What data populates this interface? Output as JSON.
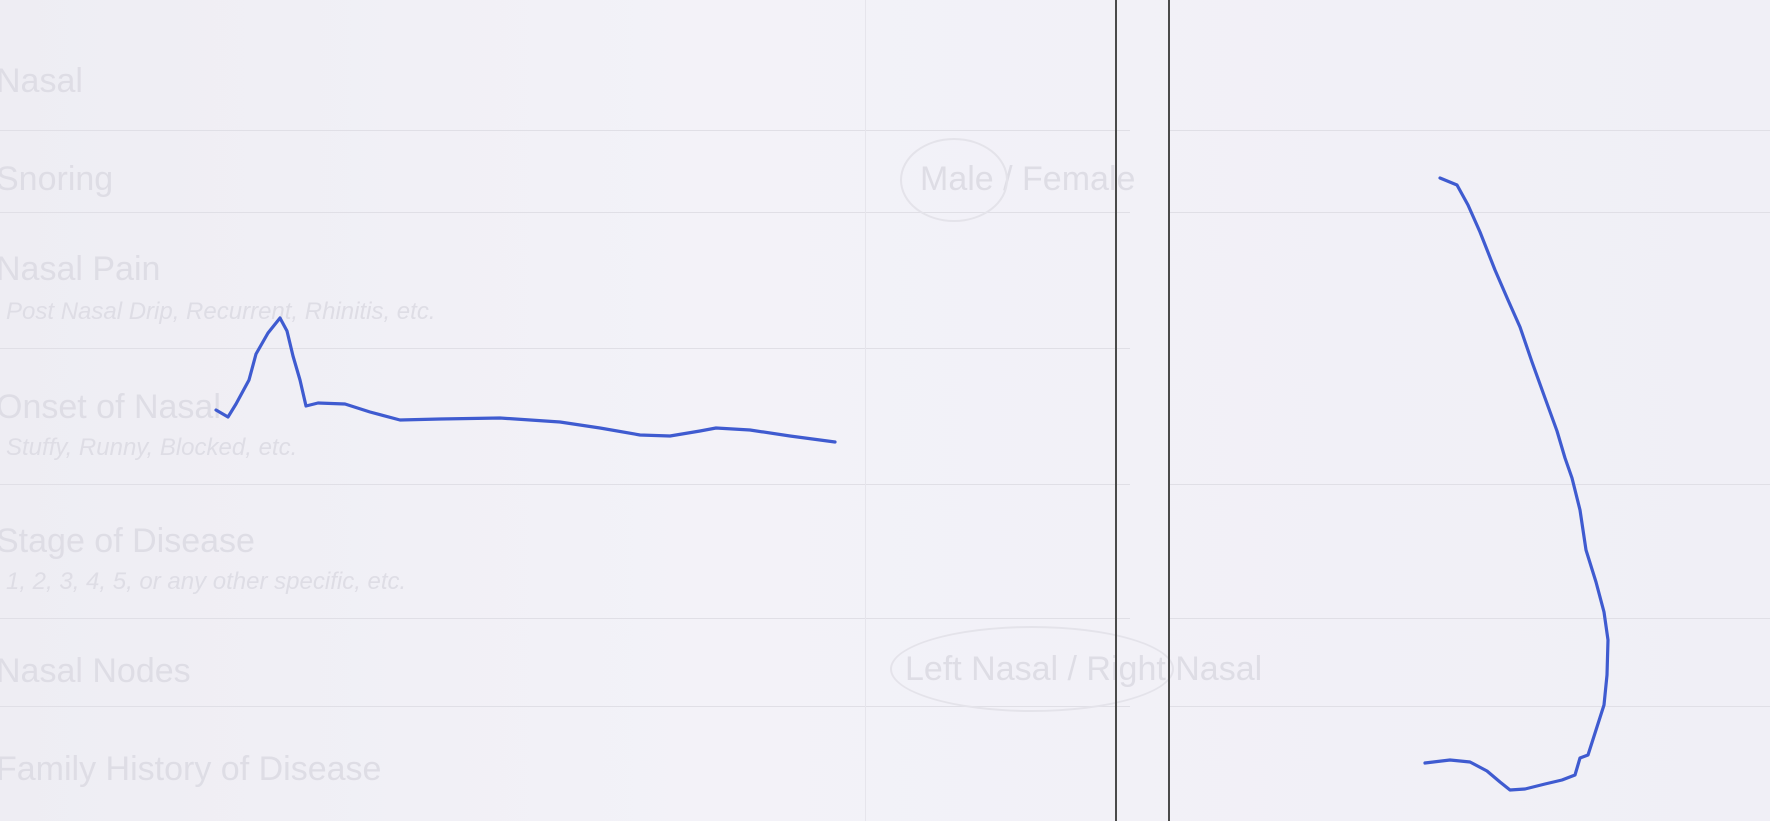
{
  "ink_color": "#3f5bd0",
  "rule_color": "#4a4a4a",
  "show_through_left": [
    "Nasal",
    "Snoring",
    "Nasal Pain",
    "Onset of Nasal",
    "Stage of Disease",
    "Nasal Nodes",
    "Family History of Disease"
  ],
  "show_through_left_hints": [
    "Post Nasal Drip, Recurrent, Rhinitis, etc.",
    "Stuffy, Runny, Blocked, etc.",
    "1, 2, 3, 4, 5, or any other specific, etc."
  ],
  "show_through_right": [
    "Male / Female",
    "Left Nasal / Right Nasal"
  ]
}
